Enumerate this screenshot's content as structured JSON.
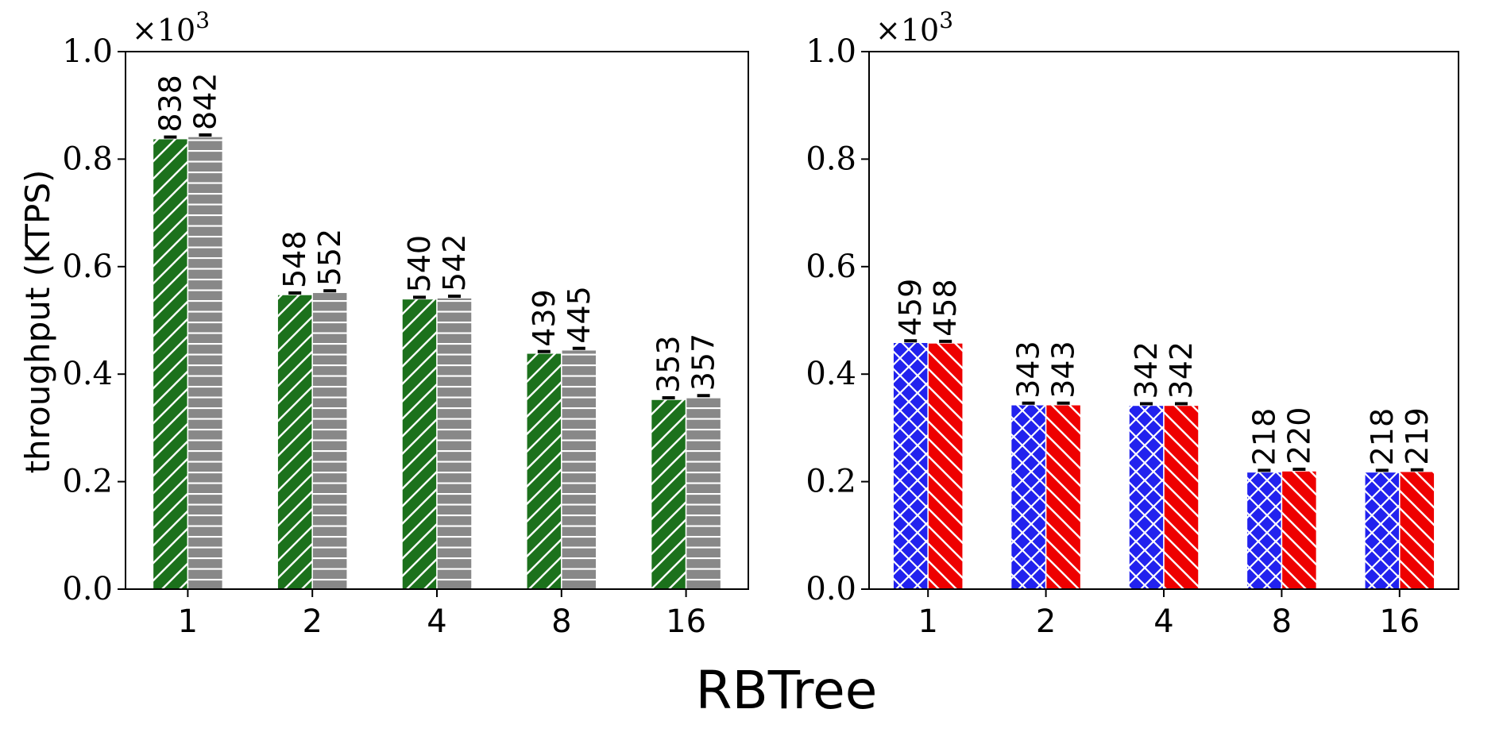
{
  "figure": {
    "title": "RBTree",
    "ylabel": "throughput (KTPS)"
  },
  "chart_data": [
    {
      "type": "bar",
      "categories": [
        "1",
        "2",
        "4",
        "8",
        "16"
      ],
      "ylim": [
        0,
        1.0
      ],
      "yticks": [
        "0.0",
        "0.2",
        "0.4",
        "0.6",
        "0.8",
        "1.0"
      ],
      "scale_label": "×10",
      "scale_exp": "3",
      "ylabel": "throughput (KTPS)",
      "grid": false,
      "series": [
        {
          "color": "#1c711c",
          "pattern": "diag-up",
          "values": [
            838,
            548,
            540,
            439,
            353
          ]
        },
        {
          "color": "#888888",
          "pattern": "horizontal",
          "values": [
            842,
            552,
            542,
            445,
            357
          ]
        }
      ]
    },
    {
      "type": "bar",
      "categories": [
        "1",
        "2",
        "4",
        "8",
        "16"
      ],
      "ylim": [
        0,
        1.0
      ],
      "yticks": [
        "0.0",
        "0.2",
        "0.4",
        "0.6",
        "0.8",
        "1.0"
      ],
      "scale_label": "×10",
      "scale_exp": "3",
      "grid": false,
      "series": [
        {
          "color": "#2222ee",
          "pattern": "crosshatch",
          "values": [
            459,
            343,
            342,
            218,
            218
          ]
        },
        {
          "color": "#ee0000",
          "pattern": "diag-down",
          "values": [
            458,
            343,
            342,
            220,
            219
          ]
        }
      ]
    }
  ]
}
